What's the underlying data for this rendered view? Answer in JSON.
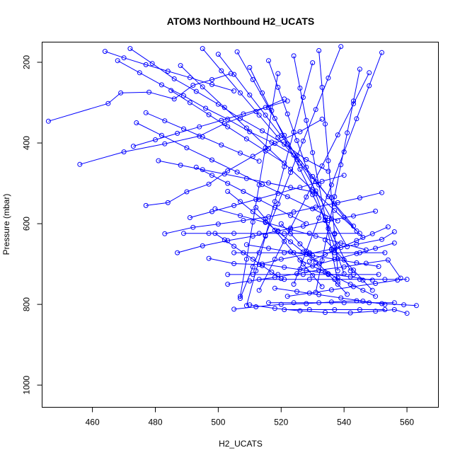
{
  "chart_data": {
    "type": "line",
    "title": "ATOM3 Northbound H2_UCATS",
    "xlabel": "H2_UCATS",
    "ylabel": "Pressure (mbar)",
    "xlim": [
      444,
      570
    ],
    "ylim": [
      1055,
      150
    ],
    "y_reversed": true,
    "x_ticks": [
      460,
      480,
      500,
      520,
      540,
      560
    ],
    "y_ticks": [
      200,
      400,
      600,
      800,
      1000
    ],
    "x_tick_labels": [
      "460",
      "480",
      "500",
      "520",
      "540",
      "560"
    ],
    "y_tick_labels": [
      "200",
      "400",
      "600",
      "800",
      "1000"
    ],
    "grid": false,
    "legend": "none",
    "marker": "open-circle",
    "color": "#0000ff",
    "series": [
      {
        "x": [
          446,
          465,
          469,
          478,
          486,
          492,
          498,
          504
        ],
        "y": [
          346,
          302,
          276,
          274,
          291,
          257,
          243,
          228
        ]
      },
      {
        "x": [
          456,
          470,
          483,
          494,
          502,
          512,
          521
        ],
        "y": [
          453,
          422,
          402,
          383,
          352,
          322,
          291
        ]
      },
      {
        "x": [
          477,
          484,
          490,
          497,
          503,
          511,
          518,
          526,
          533
        ],
        "y": [
          555,
          548,
          521,
          502,
          469,
          433,
          401,
          372,
          341
        ]
      },
      {
        "x": [
          483,
          492,
          500,
          508,
          516,
          524,
          531,
          538,
          545,
          552
        ],
        "y": [
          625,
          609,
          601,
          592,
          583,
          571,
          559,
          548,
          536,
          523
        ]
      },
      {
        "x": [
          487,
          495,
          503,
          511,
          519,
          527,
          535,
          543,
          550
        ],
        "y": [
          672,
          655,
          642,
          631,
          618,
          606,
          592,
          581,
          569
        ]
      },
      {
        "x": [
          497,
          505,
          513,
          520,
          528,
          536,
          544,
          552,
          556
        ],
        "y": [
          686,
          699,
          701,
          688,
          676,
          663,
          651,
          639,
          620
        ]
      },
      {
        "x": [
          503,
          510,
          518,
          525,
          532,
          540,
          547,
          554,
          558
        ],
        "y": [
          750,
          742,
          733,
          724,
          715,
          707,
          698,
          690,
          735
        ]
      },
      {
        "x": [
          505,
          512,
          520,
          528,
          536,
          544,
          552,
          559,
          563
        ],
        "y": [
          812,
          806,
          800,
          798,
          794,
          791,
          798,
          801,
          803
        ]
      },
      {
        "x": [
          510,
          518,
          526,
          534,
          542,
          550,
          556,
          560
        ],
        "y": [
          801,
          810,
          816,
          820,
          821,
          817,
          813,
          822
        ]
      },
      {
        "x": [
          468,
          475,
          482,
          489,
          496,
          503,
          510,
          517,
          524
        ],
        "y": [
          196,
          226,
          256,
          283,
          314,
          341,
          372,
          398,
          430
        ]
      },
      {
        "x": [
          472,
          479,
          486,
          493,
          500,
          507,
          514,
          521,
          528,
          535
        ],
        "y": [
          166,
          203,
          241,
          272,
          304,
          339,
          370,
          403,
          441,
          470
        ]
      },
      {
        "x": [
          474,
          482,
          490,
          498,
          506,
          514,
          522,
          530,
          538
        ],
        "y": [
          350,
          381,
          412,
          442,
          472,
          503,
          533,
          563,
          593
        ]
      },
      {
        "x": [
          488,
          495,
          502,
          509,
          516,
          523,
          530,
          537,
          544
        ],
        "y": [
          208,
          261,
          312,
          363,
          414,
          465,
          516,
          567,
          618
        ]
      },
      {
        "x": [
          495,
          501,
          507,
          513,
          519,
          525,
          531,
          537,
          543
        ],
        "y": [
          166,
          221,
          276,
          331,
          386,
          441,
          496,
          551,
          606
        ]
      },
      {
        "x": [
          500,
          505,
          510,
          515,
          520,
          525,
          530,
          535,
          540,
          546
        ],
        "y": [
          180,
          230,
          281,
          331,
          382,
          432,
          483,
          533,
          584,
          634
        ]
      },
      {
        "x": [
          506,
          511,
          516,
          521,
          526,
          531,
          536,
          541
        ],
        "y": [
          174,
          243,
          312,
          381,
          450,
          519,
          588,
          657
        ]
      },
      {
        "x": [
          510,
          514,
          518,
          522,
          526,
          530,
          534,
          538,
          542
        ],
        "y": [
          213,
          276,
          339,
          402,
          465,
          528,
          591,
          654,
          717
        ]
      },
      {
        "x": [
          516,
          519,
          522,
          525,
          528,
          531,
          534,
          537,
          540
        ],
        "y": [
          196,
          262,
          328,
          394,
          460,
          526,
          592,
          658,
          724
        ]
      },
      {
        "x": [
          524,
          526,
          528,
          530,
          532,
          534,
          536,
          538
        ],
        "y": [
          184,
          264,
          344,
          424,
          504,
          584,
          664,
          744
        ]
      },
      {
        "x": [
          532,
          533,
          534,
          535,
          536,
          537,
          538
        ],
        "y": [
          171,
          262,
          353,
          444,
          535,
          626,
          717
        ]
      },
      {
        "x": [
          545,
          543,
          541,
          539,
          537,
          535,
          533,
          531
        ],
        "y": [
          217,
          296,
          375,
          454,
          533,
          612,
          691,
          770
        ]
      },
      {
        "x": [
          552,
          548,
          544,
          540,
          536,
          532,
          528,
          524
        ],
        "y": [
          176,
          258,
          340,
          422,
          504,
          586,
          668,
          750
        ]
      },
      {
        "x": [
          548,
          543,
          538,
          533,
          528,
          523,
          518,
          513
        ],
        "y": [
          226,
          303,
          380,
          457,
          534,
          611,
          688,
          765
        ]
      },
      {
        "x": [
          539,
          535,
          531,
          527,
          523,
          519,
          515,
          511,
          507
        ],
        "y": [
          161,
          239,
          317,
          395,
          473,
          551,
          629,
          707,
          785
        ]
      },
      {
        "x": [
          530,
          527,
          524,
          521,
          518,
          515,
          512,
          509
        ],
        "y": [
          201,
          287,
          373,
          459,
          545,
          631,
          717,
          803
        ]
      },
      {
        "x": [
          519,
          517,
          515,
          513,
          511,
          509,
          507
        ],
        "y": [
          228,
          320,
          412,
          504,
          596,
          688,
          780
        ]
      },
      {
        "x": [
          499,
          502,
          505,
          508,
          511,
          514,
          517,
          520
        ],
        "y": [
          624,
          640,
          656,
          672,
          688,
          704,
          720,
          736
        ]
      },
      {
        "x": [
          489,
          497,
          505,
          513,
          521,
          529,
          537,
          545
        ],
        "y": [
          624,
          624,
          624,
          624,
          624,
          624,
          624,
          624
        ]
      },
      {
        "x": [
          505,
          513,
          521,
          529,
          537,
          545,
          553
        ],
        "y": [
          672,
          672,
          672,
          672,
          672,
          672,
          672
        ]
      },
      {
        "x": [
          503,
          511,
          519,
          527,
          535,
          543,
          551
        ],
        "y": [
          726,
          726,
          726,
          726,
          726,
          726,
          726
        ]
      },
      {
        "x": [
          513,
          521,
          529,
          537,
          545,
          553,
          560
        ],
        "y": [
          738,
          738,
          738,
          738,
          738,
          738,
          738
        ]
      },
      {
        "x": [
          521,
          529,
          537,
          545,
          553
        ],
        "y": [
          813,
          813,
          813,
          813,
          813
        ]
      },
      {
        "x": [
          516,
          524,
          532,
          540,
          548,
          556
        ],
        "y": [
          796,
          796,
          796,
          796,
          796,
          796
        ]
      },
      {
        "x": [
          464,
          470,
          477,
          484,
          491,
          498,
          505
        ],
        "y": [
          173,
          189,
          206,
          222,
          238,
          255,
          271
        ]
      },
      {
        "x": [
          473,
          480,
          487,
          494,
          501,
          508,
          515,
          522
        ],
        "y": [
          408,
          392,
          376,
          360,
          344,
          328,
          312,
          296
        ]
      },
      {
        "x": [
          481,
          488,
          495,
          502,
          509,
          516,
          523,
          530
        ],
        "y": [
          444,
          455,
          466,
          477,
          488,
          499,
          510,
          521
        ]
      },
      {
        "x": [
          491,
          498,
          505,
          512,
          519,
          526,
          533,
          540
        ],
        "y": [
          585,
          570,
          555,
          540,
          525,
          510,
          495,
          480
        ]
      },
      {
        "x": [
          499,
          507,
          515,
          523,
          531,
          539,
          547
        ],
        "y": [
          563,
          580,
          597,
          614,
          631,
          648,
          665
        ]
      },
      {
        "x": [
          509,
          516,
          523,
          530,
          537,
          544,
          551
        ],
        "y": [
          652,
          661,
          670,
          679,
          688,
          697,
          706
        ]
      },
      {
        "x": [
          514,
          521,
          528,
          535,
          542,
          549
        ],
        "y": [
          700,
          708,
          716,
          724,
          732,
          740
        ]
      },
      {
        "x": [
          518,
          525,
          532,
          539,
          546,
          553
        ],
        "y": [
          760,
          768,
          776,
          784,
          792,
          800
        ]
      },
      {
        "x": [
          522,
          529,
          536,
          543,
          550,
          557
        ],
        "y": [
          780,
          772,
          764,
          756,
          748,
          740
        ]
      },
      {
        "x": [
          526,
          532,
          538,
          544,
          550,
          556
        ],
        "y": [
          713,
          700,
          687,
          674,
          661,
          648
        ]
      },
      {
        "x": [
          529,
          534,
          539,
          544,
          549,
          554
        ],
        "y": [
          693,
          676,
          659,
          642,
          625,
          608
        ]
      },
      {
        "x": [
          477,
          483,
          489,
          495,
          501,
          507,
          513
        ],
        "y": [
          325,
          345,
          365,
          385,
          405,
          425,
          445
        ]
      },
      {
        "x": [
          485,
          491,
          497,
          503,
          509,
          515,
          521
        ],
        "y": [
          270,
          300,
          330,
          360,
          390,
          420,
          450
        ]
      },
      {
        "x": [
          493,
          498,
          503,
          508,
          513,
          518,
          523,
          528
        ],
        "y": [
          460,
          480,
          500,
          520,
          540,
          560,
          580,
          600
        ]
      },
      {
        "x": [
          503,
          507,
          511,
          515,
          519,
          523,
          527,
          531
        ],
        "y": [
          520,
          545,
          570,
          595,
          620,
          645,
          670,
          695
        ]
      },
      {
        "x": [
          512,
          515,
          518,
          521,
          524,
          527,
          530,
          533
        ],
        "y": [
          560,
          588,
          616,
          644,
          672,
          700,
          728,
          756
        ]
      },
      {
        "x": [
          520,
          523,
          526,
          529,
          532,
          535,
          538,
          541
        ],
        "y": [
          600,
          625,
          650,
          675,
          700,
          725,
          750,
          775
        ]
      },
      {
        "x": [
          534,
          537,
          540,
          543,
          546,
          549
        ],
        "y": [
          640,
          665,
          690,
          715,
          740,
          765
        ]
      },
      {
        "x": [
          526,
          530,
          534,
          538,
          542,
          546,
          550
        ],
        "y": [
          690,
          705,
          720,
          735,
          750,
          765,
          780
        ]
      }
    ]
  }
}
